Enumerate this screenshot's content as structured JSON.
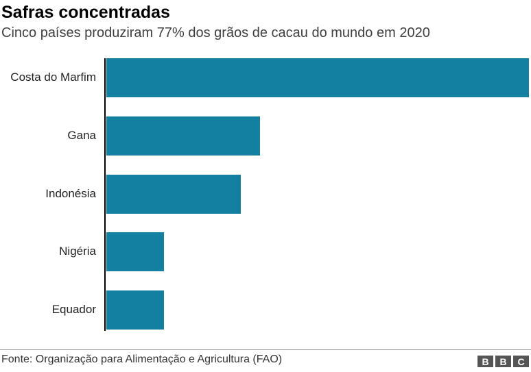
{
  "chart_data": {
    "type": "bar",
    "orientation": "horizontal",
    "title": "Safras concentradas",
    "subtitle": "Cinco países produziram 77% dos grãos de cacau do mundo em 2020",
    "categories": [
      "Costa do Marfim",
      "Gana",
      "Indonésia",
      "Nigéria",
      "Equador"
    ],
    "values": [
      2.2,
      0.8,
      0.7,
      0.3,
      0.3
    ],
    "xlim": [
      0,
      2.2
    ],
    "grid": false,
    "bar_color": "#1380A1",
    "source": "Fonte: Organização para Alimentação e Agricultura (FAO)"
  },
  "logo": "BBC"
}
